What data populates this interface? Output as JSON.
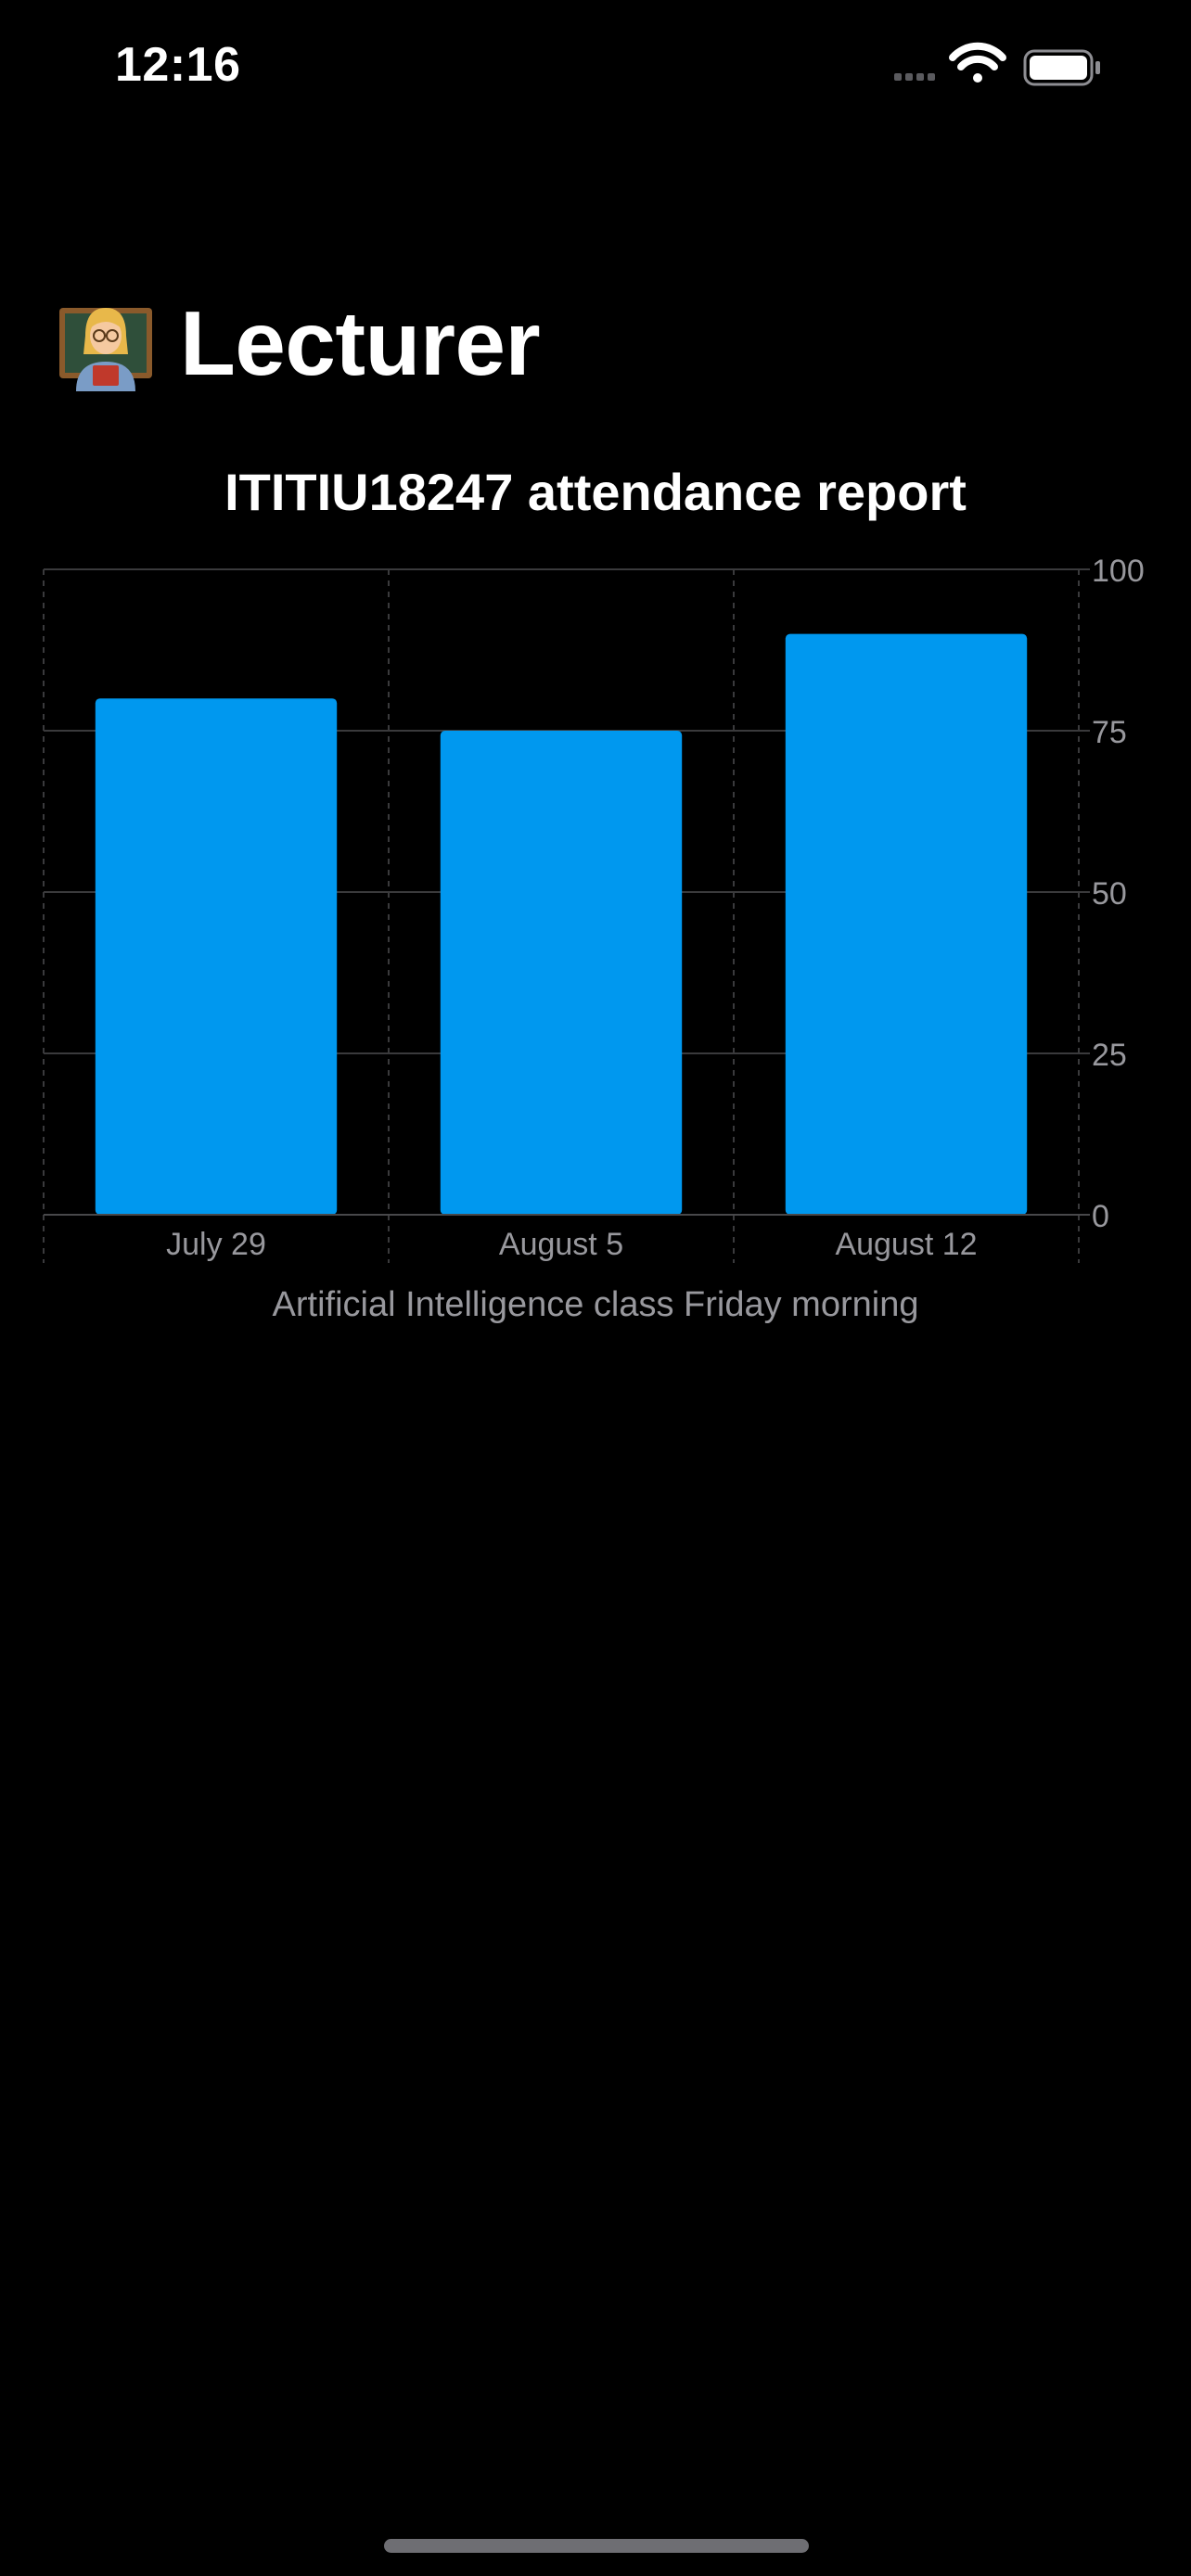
{
  "status_bar": {
    "time": "12:16"
  },
  "header": {
    "title": "Lecturer",
    "emoji_icon": "teacher-emoji"
  },
  "chart_data": {
    "type": "bar",
    "title": "ITITIU18247 attendance report",
    "caption": "Artificial Intelligence class Friday morning",
    "categories": [
      "July 29",
      "August 5",
      "August 12"
    ],
    "values": [
      80,
      75,
      90
    ],
    "ylim": [
      0,
      100
    ],
    "yticks": [
      0,
      25,
      50,
      75,
      100
    ],
    "ytick_labels": [
      "0",
      "25",
      "50",
      "75",
      "100"
    ],
    "y_axis_position": "right",
    "grid": true,
    "bar_color": "#0098ef",
    "grid_color": "#3a3a3c",
    "tick_label_color": "#98989d"
  }
}
